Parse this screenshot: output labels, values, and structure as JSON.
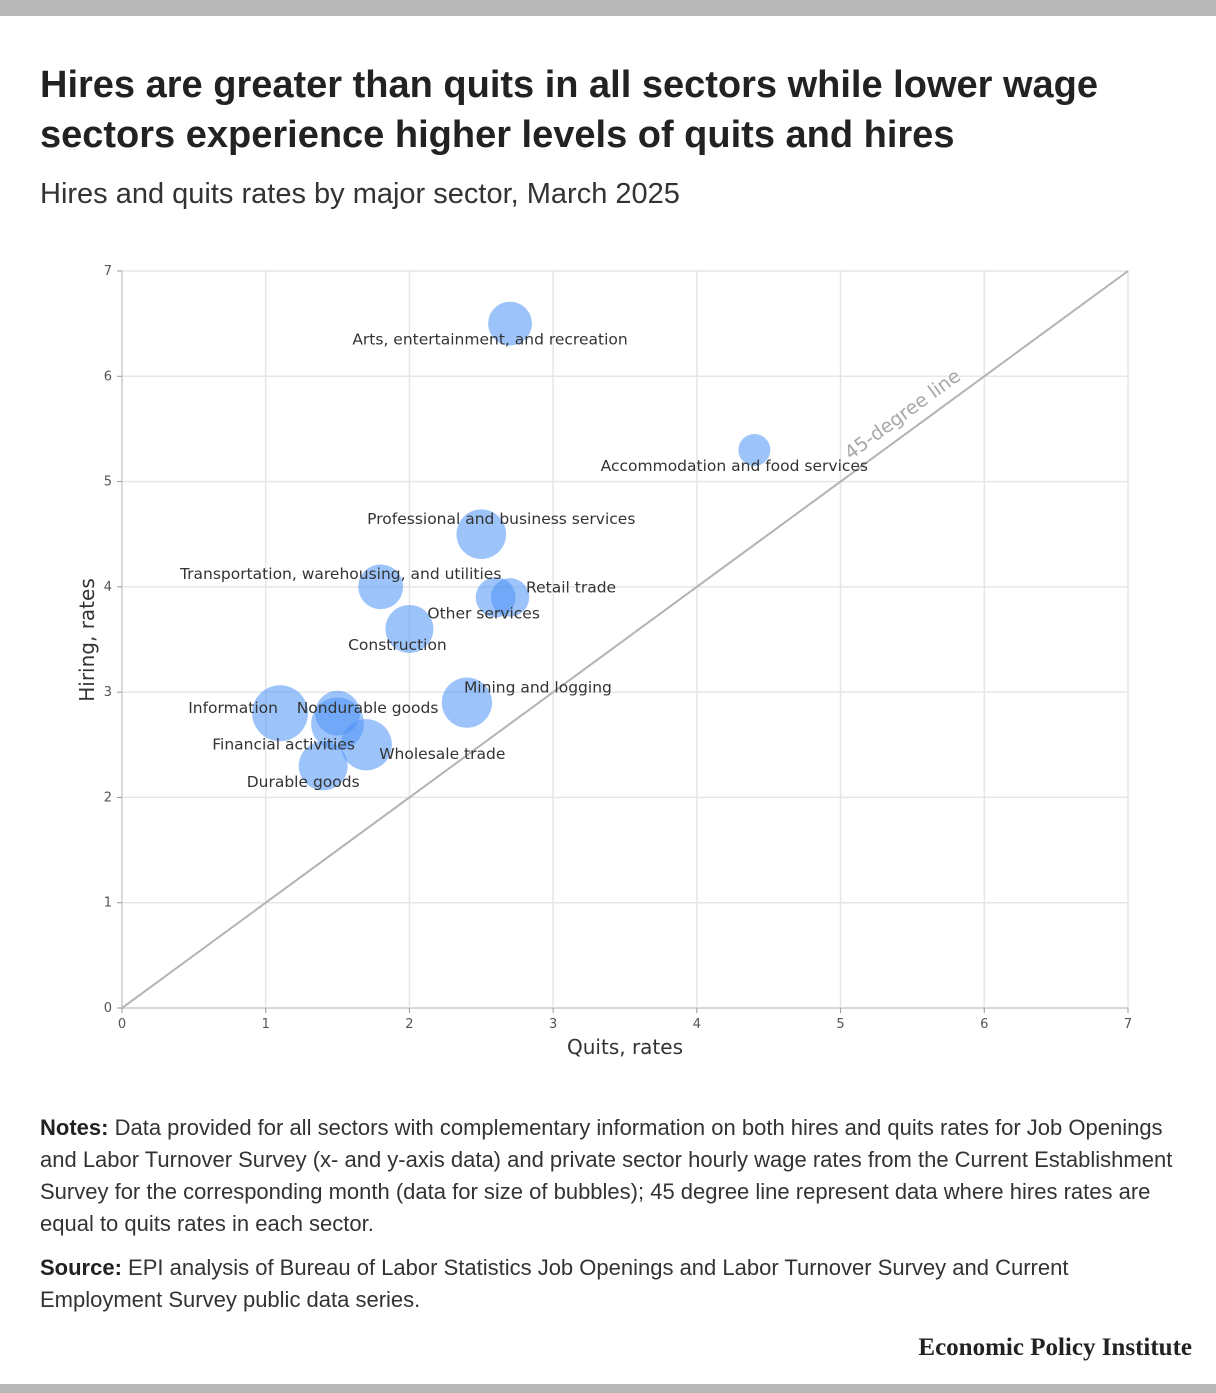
{
  "title": "Hires are greater than quits in all sectors while lower wage sectors experience higher levels of quits and hires",
  "subtitle": "Hires and quits rates by major sector, March 2025",
  "notes_label": "Notes:",
  "notes_text": "Data provided for all sectors with complementary information on both hires and quits rates for Job Openings and Labor Turnover Survey (x- and y-axis data) and private sector hourly wage rates from the Current Establishment Survey for the corresponding month (data for size of bubbles); 45 degree line represent data where hires rates are equal to quits rates in each sector.",
  "source_label": "Source:",
  "source_text": "EPI analysis of Bureau of Labor Statistics Job Openings and Labor Turnover Survey and Current Employment Survey public data series.",
  "brand": "Economic Policy Institute",
  "chart_data": {
    "type": "scatter",
    "xlabel": "Quits, rates",
    "ylabel": "Hiring, rates",
    "xlim": [
      0,
      7
    ],
    "ylim": [
      0,
      7
    ],
    "xticks": [
      0,
      1,
      2,
      3,
      4,
      5,
      6,
      7
    ],
    "yticks": [
      0,
      1,
      2,
      3,
      4,
      5,
      6,
      7
    ],
    "grid": true,
    "bubble_color": "#4d94f5",
    "reference_line": {
      "label": "45-degree line",
      "x": [
        0,
        7
      ],
      "y": [
        0,
        7
      ],
      "color": "#b3b3b3"
    },
    "points": [
      {
        "label": "Arts, entertainment, and recreation",
        "x": 2.7,
        "y": 6.5,
        "size": 0.62
      },
      {
        "label": "Accommodation and food services",
        "x": 4.4,
        "y": 5.3,
        "size": 0.25
      },
      {
        "label": "Professional and business services",
        "x": 2.5,
        "y": 4.5,
        "size": 0.8
      },
      {
        "label": "Transportation, warehousing, and utilities",
        "x": 1.8,
        "y": 4.0,
        "size": 0.65
      },
      {
        "label": "Retail trade",
        "x": 2.7,
        "y": 3.9,
        "size": 0.45
      },
      {
        "label": "Other services",
        "x": 2.6,
        "y": 3.9,
        "size": 0.5
      },
      {
        "label": "Construction",
        "x": 2.0,
        "y": 3.6,
        "size": 0.75
      },
      {
        "label": "Mining and logging",
        "x": 2.4,
        "y": 2.9,
        "size": 0.82
      },
      {
        "label": "Information",
        "x": 1.1,
        "y": 2.8,
        "size": 1.0
      },
      {
        "label": "Nondurable goods",
        "x": 1.5,
        "y": 2.8,
        "size": 0.65
      },
      {
        "label": "Financial activities",
        "x": 1.5,
        "y": 2.7,
        "size": 0.9
      },
      {
        "label": "Wholesale trade",
        "x": 1.7,
        "y": 2.5,
        "size": 0.85
      },
      {
        "label": "Durable goods",
        "x": 1.4,
        "y": 2.3,
        "size": 0.78
      }
    ]
  }
}
